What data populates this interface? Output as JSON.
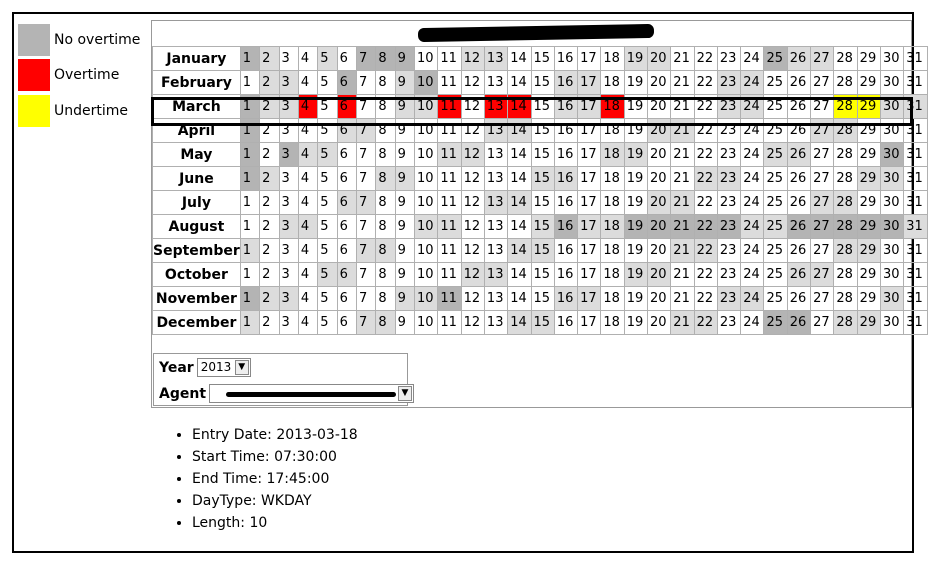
{
  "legend": [
    {
      "label": "No overtime",
      "color": "#b4b4b4"
    },
    {
      "label": "Overtime",
      "color": "#ff0000"
    },
    {
      "label": "Undertime",
      "color": "#ffff00"
    }
  ],
  "calendar": {
    "months": [
      {
        "name": "January",
        "days": 31,
        "light": [
          2,
          5,
          12,
          13,
          19,
          20,
          26,
          27
        ],
        "dark": [
          1,
          7,
          8,
          9,
          25
        ],
        "red": [],
        "yellow": []
      },
      {
        "name": "February",
        "days": 31,
        "light": [
          2,
          3,
          9,
          16,
          17,
          23,
          24
        ],
        "dark": [
          6,
          10
        ],
        "red": [],
        "yellow": []
      },
      {
        "name": "March",
        "days": 31,
        "light": [
          2,
          3,
          9,
          10,
          16,
          17,
          23,
          24,
          30,
          31
        ],
        "dark": [
          1
        ],
        "red": [
          4,
          6,
          11,
          13,
          14,
          18
        ],
        "yellow": [
          28,
          29
        ]
      },
      {
        "name": "April",
        "days": 31,
        "light": [
          6,
          7,
          13,
          14,
          20,
          21,
          27,
          28
        ],
        "dark": [
          1
        ],
        "red": [],
        "yellow": []
      },
      {
        "name": "May",
        "days": 31,
        "light": [
          4,
          5,
          11,
          12,
          18,
          19,
          25,
          26
        ],
        "dark": [
          1,
          3,
          30
        ],
        "red": [],
        "yellow": []
      },
      {
        "name": "June",
        "days": 31,
        "light": [
          2,
          8,
          9,
          15,
          16,
          22,
          23,
          29,
          30
        ],
        "dark": [
          1
        ],
        "red": [],
        "yellow": []
      },
      {
        "name": "July",
        "days": 31,
        "light": [
          6,
          7,
          13,
          14,
          20,
          21,
          27,
          28
        ],
        "dark": [],
        "red": [],
        "yellow": []
      },
      {
        "name": "August",
        "days": 31,
        "light": [
          3,
          4,
          10,
          11,
          15,
          17,
          18,
          24,
          25,
          31
        ],
        "dark": [
          16,
          19,
          20,
          21,
          22,
          23,
          26,
          27,
          28,
          29,
          30
        ],
        "red": [],
        "yellow": []
      },
      {
        "name": "September",
        "days": 31,
        "light": [
          1,
          7,
          8,
          14,
          15,
          21,
          22,
          28,
          29
        ],
        "dark": [],
        "red": [],
        "yellow": []
      },
      {
        "name": "October",
        "days": 31,
        "light": [
          5,
          6,
          12,
          13,
          19,
          20,
          26,
          27
        ],
        "dark": [],
        "red": [],
        "yellow": []
      },
      {
        "name": "November",
        "days": 31,
        "light": [
          2,
          3,
          9,
          10,
          16,
          17,
          23,
          24,
          30
        ],
        "dark": [
          1,
          11
        ],
        "red": [],
        "yellow": []
      },
      {
        "name": "December",
        "days": 31,
        "light": [
          1,
          7,
          8,
          14,
          15,
          21,
          22,
          28,
          29
        ],
        "dark": [
          25,
          26
        ],
        "red": [],
        "yellow": []
      }
    ]
  },
  "controls": {
    "year_label": "Year",
    "year_value": "2013",
    "agent_label": "Agent",
    "agent_value": ""
  },
  "details": [
    "Entry Date: 2013-03-18",
    "Start Time: 07:30:00",
    "End Time: 17:45:00",
    "DayType: WKDAY",
    "Length: 10"
  ]
}
